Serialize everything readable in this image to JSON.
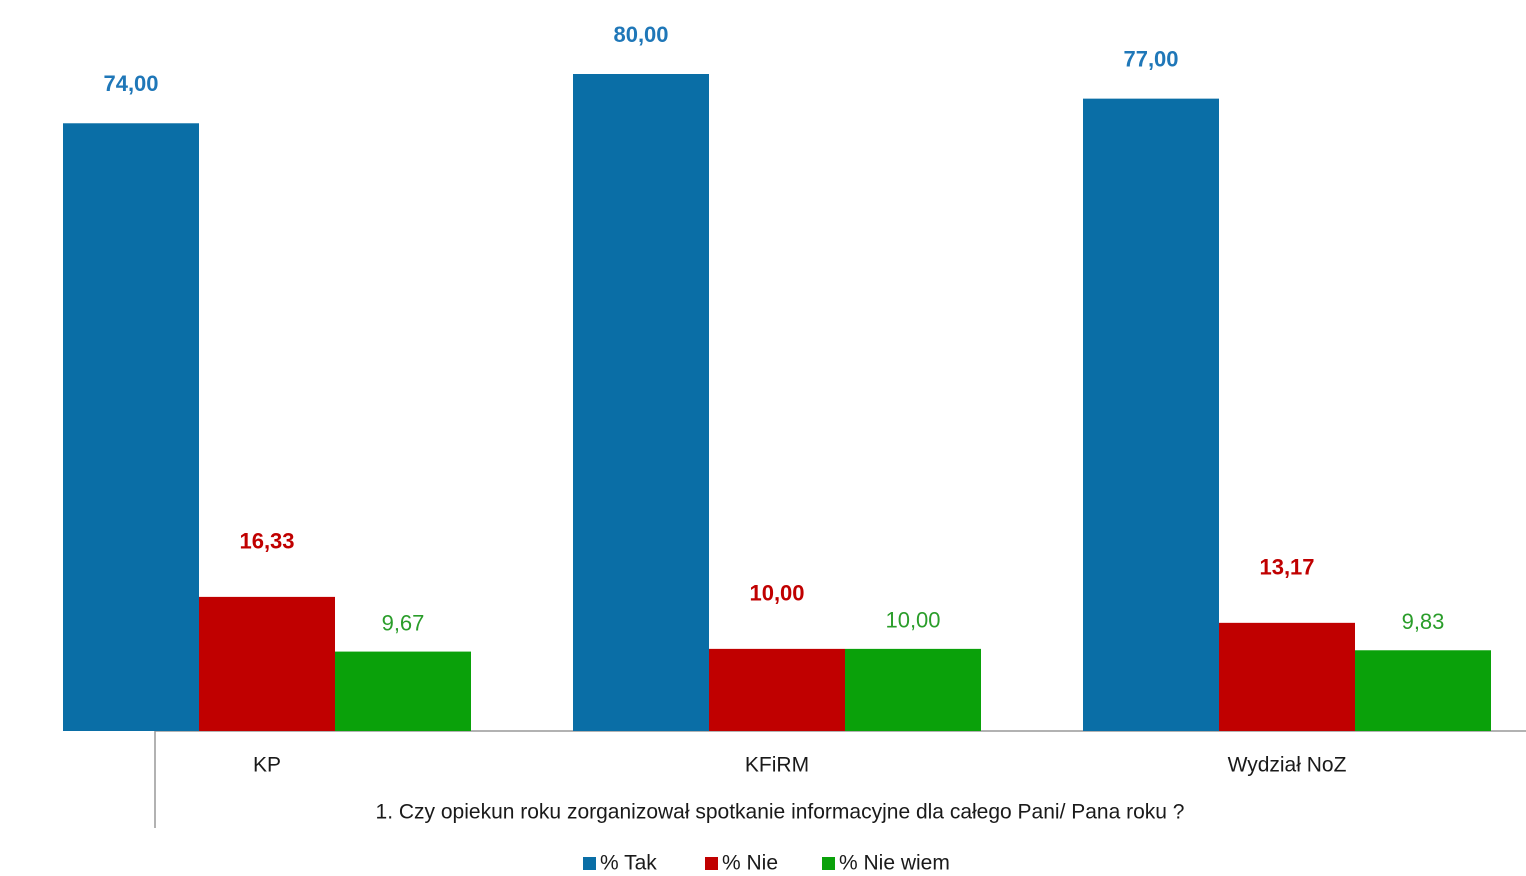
{
  "chart_data": {
    "type": "bar",
    "x_label": "1. Czy opiekun roku zorganizował spotkanie informacyjne dla całego Pani/ Pana roku ?",
    "categories": [
      "KP",
      "KFiRM",
      "Wydział NoZ"
    ],
    "series": [
      {
        "name": "% Tak",
        "color": "#0a6ea6",
        "values": [
          74,
          80,
          77
        ],
        "value_labels": [
          "74,00",
          "80,00",
          "77,00"
        ]
      },
      {
        "name": "% Nie",
        "color": "#c00000",
        "values": [
          16.33,
          10,
          13.17
        ],
        "value_labels": [
          "16,33",
          "10,00",
          "13,17"
        ]
      },
      {
        "name": "% Nie wiem",
        "color": "#0aa10a",
        "values": [
          9.67,
          10,
          9.83
        ],
        "value_labels": [
          "9,67",
          "10,00",
          "9,83"
        ]
      }
    ],
    "legend": "bottom"
  }
}
